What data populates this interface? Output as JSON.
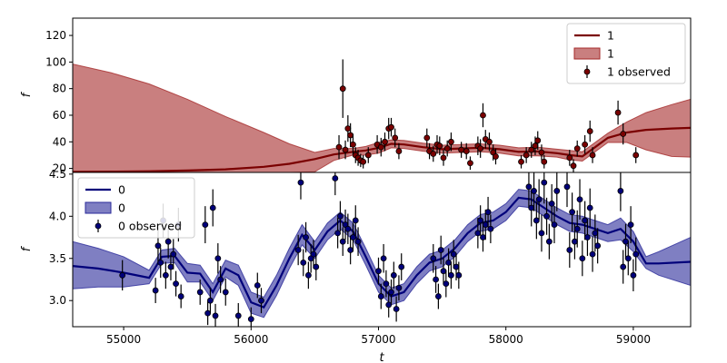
{
  "chart_data": [
    {
      "type": "line",
      "panel": "top",
      "ylabel": "f",
      "xlim": [
        54600,
        59450
      ],
      "ylim": [
        17,
        133
      ],
      "yticks": [
        20,
        40,
        60,
        80,
        100,
        120
      ],
      "colors": {
        "line": "#7a0000",
        "band": "#a52a2a",
        "points": "#7a0000"
      },
      "legend": {
        "placement": "upper-right",
        "entries": [
          {
            "kind": "line",
            "label": "1"
          },
          {
            "kind": "band",
            "label": "1"
          },
          {
            "kind": "errorbar",
            "label": "1 observed"
          }
        ]
      },
      "mean": {
        "x": [
          54600,
          54900,
          55200,
          55500,
          55800,
          56100,
          56300,
          56500,
          56650,
          56800,
          56900,
          57000,
          57100,
          57200,
          57350,
          57500,
          57650,
          57800,
          57950,
          58100,
          58250,
          58400,
          58500,
          58600,
          58700,
          58800,
          58950,
          59100,
          59300,
          59450
        ],
        "y": [
          17.5,
          17.6,
          17.9,
          18.4,
          19.3,
          21.2,
          23.5,
          27,
          30.5,
          32.5,
          33.5,
          35.5,
          38.5,
          38,
          36,
          34.5,
          35,
          35.5,
          34.5,
          32.5,
          32.8,
          31.5,
          30,
          29,
          36,
          43,
          47,
          49,
          50,
          50.5
        ]
      },
      "band": {
        "x": [
          54600,
          54900,
          55200,
          55500,
          55800,
          56100,
          56300,
          56500,
          56650,
          56800,
          56900,
          57000,
          57100,
          57200,
          57350,
          57500,
          57650,
          57800,
          57950,
          58100,
          58250,
          58400,
          58500,
          58600,
          58700,
          58800,
          58950,
          59100,
          59300,
          59450
        ],
        "lower": [
          17,
          17,
          17,
          17,
          17,
          17,
          17,
          17.5,
          26,
          30,
          30,
          31.5,
          35.5,
          35,
          33,
          31.5,
          32,
          32.5,
          31.5,
          29.5,
          29.5,
          28.5,
          26.5,
          25.5,
          32.5,
          39.5,
          39.5,
          34,
          29,
          28.5
        ],
        "upper": [
          98.5,
          92,
          83.5,
          72,
          59,
          47,
          38.5,
          32,
          35,
          35,
          36.5,
          39.5,
          41.5,
          41,
          39,
          37.5,
          38,
          38.5,
          37.5,
          35.5,
          36,
          34.5,
          33.5,
          32.5,
          39.5,
          46.5,
          55,
          62,
          68,
          72
        ]
      },
      "observed": {
        "x": [
          56690,
          56720,
          56740,
          56760,
          56780,
          56800,
          56820,
          56840,
          56860,
          56880,
          56920,
          56990,
          57020,
          57050,
          57080,
          57100,
          57130,
          57160,
          57380,
          57400,
          57430,
          57460,
          57480,
          57510,
          57540,
          57570,
          57650,
          57690,
          57720,
          57780,
          57800,
          57820,
          57840,
          57870,
          57900,
          57920,
          58120,
          58160,
          58200,
          58230,
          58250,
          58280,
          58300,
          58500,
          58530,
          58560,
          58620,
          58660,
          58680,
          58880,
          58920,
          59020
        ],
        "y": [
          36,
          80,
          34,
          50,
          45,
          38,
          30,
          28,
          26,
          25,
          30,
          38,
          36,
          40,
          50,
          51,
          43,
          33,
          43,
          33,
          31,
          38,
          37,
          28,
          35,
          40,
          34,
          33,
          24,
          37,
          35,
          60,
          42,
          40,
          32,
          29,
          25,
          30,
          34,
          37,
          41,
          32,
          25,
          28,
          22,
          35,
          38,
          48,
          30,
          62,
          46,
          30
        ],
        "err": [
          9,
          22,
          7,
          10,
          9,
          8,
          6,
          6,
          5,
          5,
          6,
          7,
          7,
          7,
          8,
          7,
          7,
          6,
          7,
          6,
          6,
          7,
          7,
          6,
          6,
          7,
          6,
          6,
          5,
          7,
          7,
          9,
          7,
          7,
          6,
          6,
          5,
          6,
          6,
          7,
          7,
          6,
          5,
          6,
          5,
          6,
          7,
          8,
          6,
          9,
          8,
          6
        ]
      }
    },
    {
      "type": "line",
      "panel": "bottom",
      "xlabel": "t",
      "ylabel": "f",
      "xlim": [
        54600,
        59450
      ],
      "ylim": [
        2.69,
        4.52
      ],
      "xticks": [
        55000,
        56000,
        57000,
        58000,
        59000
      ],
      "yticks": [
        3.0,
        3.5,
        4.0,
        4.5
      ],
      "colors": {
        "line": "#00007a",
        "band": "#2a2a9a",
        "points": "#00007a"
      },
      "legend": {
        "placement": "upper-left",
        "entries": [
          {
            "kind": "line",
            "label": "0"
          },
          {
            "kind": "band",
            "label": "0"
          },
          {
            "kind": "errorbar",
            "label": "0 observed"
          }
        ]
      },
      "mean": {
        "x": [
          54600,
          54800,
          55000,
          55200,
          55300,
          55400,
          55500,
          55600,
          55700,
          55800,
          55900,
          56000,
          56100,
          56200,
          56300,
          56400,
          56500,
          56600,
          56700,
          56800,
          56900,
          57000,
          57100,
          57200,
          57300,
          57400,
          57500,
          57600,
          57700,
          57800,
          57900,
          58000,
          58100,
          58200,
          58300,
          58400,
          58500,
          58600,
          58700,
          58800,
          58900,
          59000,
          59100,
          59200,
          59450
        ],
        "y": [
          3.41,
          3.38,
          3.33,
          3.27,
          3.52,
          3.53,
          3.33,
          3.32,
          3.1,
          3.38,
          3.3,
          2.98,
          2.92,
          3.18,
          3.5,
          3.78,
          3.6,
          3.82,
          3.95,
          3.82,
          3.52,
          3.2,
          3.05,
          3.1,
          3.3,
          3.45,
          3.5,
          3.62,
          3.8,
          3.92,
          3.95,
          4.05,
          4.22,
          4.2,
          4.1,
          4.0,
          3.92,
          3.9,
          3.85,
          3.8,
          3.85,
          3.7,
          3.44,
          3.44,
          3.46
        ]
      },
      "band": {
        "x": [
          54600,
          54800,
          55000,
          55200,
          55300,
          55400,
          55500,
          55600,
          55700,
          55800,
          55900,
          56000,
          56100,
          56200,
          56300,
          56400,
          56500,
          56600,
          56700,
          56800,
          56900,
          57000,
          57100,
          57200,
          57300,
          57400,
          57500,
          57600,
          57700,
          57800,
          57900,
          58000,
          58100,
          58200,
          58300,
          58400,
          58500,
          58600,
          58700,
          58800,
          58900,
          59000,
          59100,
          59200,
          59450
        ],
        "lower": [
          3.14,
          3.16,
          3.16,
          3.2,
          3.44,
          3.45,
          3.22,
          3.22,
          3.0,
          3.28,
          3.18,
          2.85,
          2.8,
          3.06,
          3.38,
          3.66,
          3.5,
          3.72,
          3.85,
          3.72,
          3.42,
          3.1,
          2.95,
          3.0,
          3.2,
          3.35,
          3.4,
          3.52,
          3.7,
          3.82,
          3.85,
          3.95,
          4.12,
          4.1,
          4.0,
          3.9,
          3.82,
          3.8,
          3.75,
          3.7,
          3.72,
          3.58,
          3.38,
          3.3,
          3.18
        ],
        "upper": [
          3.7,
          3.62,
          3.52,
          3.36,
          3.6,
          3.62,
          3.44,
          3.42,
          3.2,
          3.48,
          3.42,
          3.1,
          3.04,
          3.3,
          3.62,
          3.9,
          3.7,
          3.92,
          4.05,
          3.92,
          3.62,
          3.3,
          3.15,
          3.2,
          3.4,
          3.55,
          3.6,
          3.72,
          3.9,
          4.02,
          4.05,
          4.15,
          4.32,
          4.3,
          4.2,
          4.1,
          4.02,
          4.0,
          3.95,
          3.9,
          3.98,
          3.82,
          3.52,
          3.58,
          3.75
        ]
      },
      "observed": {
        "x": [
          54990,
          55250,
          55270,
          55290,
          55310,
          55330,
          55350,
          55370,
          55390,
          55410,
          55430,
          55450,
          55600,
          55640,
          55660,
          55680,
          55700,
          55720,
          55740,
          55760,
          55800,
          55900,
          56000,
          56050,
          56080,
          56370,
          56390,
          56410,
          56430,
          56450,
          56470,
          56490,
          56510,
          56660,
          56680,
          56700,
          56720,
          56740,
          56760,
          56780,
          56800,
          56820,
          56840,
          57000,
          57020,
          57040,
          57060,
          57080,
          57100,
          57120,
          57140,
          57160,
          57180,
          57430,
          57450,
          57470,
          57490,
          57510,
          57530,
          57550,
          57570,
          57590,
          57610,
          57630,
          57780,
          57800,
          57820,
          57840,
          57860,
          57880,
          58180,
          58200,
          58220,
          58240,
          58260,
          58280,
          58300,
          58320,
          58340,
          58360,
          58380,
          58400,
          58480,
          58500,
          58520,
          58540,
          58560,
          58580,
          58600,
          58620,
          58640,
          58660,
          58680,
          58700,
          58720,
          58900,
          58920,
          58940,
          58960,
          58980,
          59000,
          59020
        ],
        "y": [
          3.3,
          3.12,
          3.65,
          3.45,
          3.95,
          3.3,
          3.7,
          3.4,
          3.55,
          3.2,
          3.9,
          3.05,
          3.1,
          3.9,
          2.85,
          3.0,
          4.1,
          2.82,
          3.5,
          3.25,
          3.1,
          2.82,
          2.78,
          3.18,
          3.0,
          3.6,
          4.4,
          3.45,
          3.75,
          3.3,
          3.5,
          3.55,
          3.4,
          4.45,
          3.8,
          4.0,
          3.7,
          3.9,
          3.85,
          3.6,
          3.75,
          3.95,
          3.7,
          3.35,
          3.05,
          3.5,
          3.2,
          2.95,
          3.1,
          3.3,
          2.9,
          3.15,
          3.4,
          3.5,
          3.25,
          3.05,
          3.6,
          3.35,
          3.2,
          3.45,
          3.3,
          3.55,
          3.4,
          3.3,
          3.8,
          3.95,
          3.75,
          3.9,
          4.05,
          3.85,
          4.35,
          4.1,
          4.3,
          3.95,
          4.2,
          3.8,
          4.4,
          4.0,
          3.7,
          4.15,
          3.9,
          4.3,
          4.35,
          3.6,
          4.05,
          3.7,
          3.85,
          4.2,
          3.5,
          3.95,
          3.75,
          4.1,
          3.55,
          3.8,
          3.65,
          4.3,
          3.4,
          3.7,
          3.5,
          3.9,
          3.3,
          3.55
        ],
        "err": [
          0.18,
          0.15,
          0.22,
          0.18,
          0.2,
          0.16,
          0.2,
          0.16,
          0.18,
          0.15,
          0.2,
          0.14,
          0.15,
          0.22,
          0.14,
          0.15,
          0.22,
          0.14,
          0.18,
          0.16,
          0.16,
          0.15,
          0.14,
          0.15,
          0.15,
          0.18,
          0.2,
          0.16,
          0.18,
          0.16,
          0.17,
          0.17,
          0.16,
          0.2,
          0.18,
          0.18,
          0.17,
          0.18,
          0.18,
          0.17,
          0.17,
          0.18,
          0.17,
          0.16,
          0.15,
          0.17,
          0.16,
          0.15,
          0.15,
          0.16,
          0.15,
          0.15,
          0.16,
          0.17,
          0.16,
          0.15,
          0.17,
          0.16,
          0.16,
          0.17,
          0.16,
          0.17,
          0.16,
          0.16,
          0.18,
          0.18,
          0.17,
          0.18,
          0.18,
          0.17,
          0.25,
          0.22,
          0.24,
          0.22,
          0.24,
          0.22,
          0.25,
          0.22,
          0.21,
          0.23,
          0.22,
          0.24,
          0.24,
          0.21,
          0.23,
          0.21,
          0.22,
          0.24,
          0.21,
          0.23,
          0.22,
          0.23,
          0.21,
          0.22,
          0.21,
          0.24,
          0.2,
          0.21,
          0.2,
          0.22,
          0.19,
          0.2
        ]
      }
    }
  ]
}
